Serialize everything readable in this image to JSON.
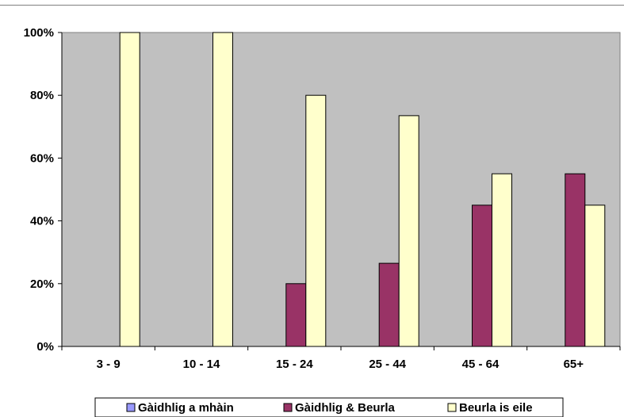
{
  "chart_data": {
    "type": "bar",
    "categories": [
      "3 - 9",
      "10 - 14",
      "15 - 24",
      "25 - 44",
      "45 - 64",
      "65+"
    ],
    "series": [
      {
        "name": "Gàidhlig a mhàin",
        "color": "#9999ff",
        "values": [
          0,
          0,
          0,
          0,
          0,
          0
        ]
      },
      {
        "name": "Gàidhlig & Beurla",
        "color": "#993366",
        "values": [
          0,
          0,
          20,
          26.5,
          45,
          55
        ]
      },
      {
        "name": "Beurla is eile",
        "color": "#ffffcc",
        "values": [
          100,
          100,
          80,
          73.5,
          55,
          45
        ]
      }
    ],
    "ylim": [
      0,
      100
    ],
    "yticks": [
      "0%",
      "20%",
      "40%",
      "60%",
      "80%",
      "100%"
    ],
    "ytick_values": [
      0,
      20,
      40,
      60,
      80,
      100
    ],
    "plot_background": "#c0c0c0",
    "grid": false,
    "legend_position": "bottom"
  }
}
